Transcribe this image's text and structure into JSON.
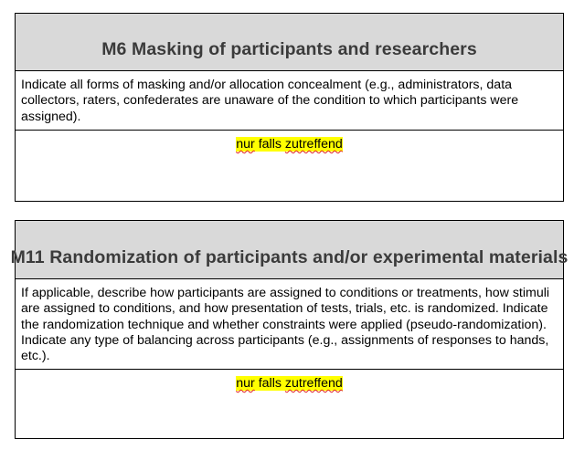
{
  "sections": [
    {
      "title": "M6 Masking of participants and researchers",
      "description": "Indicate all forms of masking and/or allocation concealment (e.g., administrators, data collectors, raters, confederates are unaware of the condition to which participants were assigned).",
      "answer": {
        "word1": "nur",
        "word2": "falls",
        "word3": "zutreffend",
        "highlight_color": "#ffff00"
      }
    },
    {
      "title": "M11 Randomization of participants and/or experimental materials",
      "description": "If applicable, describe how participants are assigned to conditions or treatments, how stimuli are assigned to conditions, and how presentation of tests, trials, etc. is randomized. Indicate the randomization technique and whether constraints were applied (pseudo-randomization). Indicate any type of balancing across participants (e.g., assignments of responses to hands, etc.).",
      "answer": {
        "word1": "nur",
        "word2": "falls",
        "word3": "zutreffend",
        "highlight_color": "#ffff00"
      }
    }
  ],
  "colors": {
    "header_background": "#d9d9d9",
    "header_text": "#3b3b3b",
    "border": "#000000",
    "spellcheck_underline": "#e02020"
  }
}
